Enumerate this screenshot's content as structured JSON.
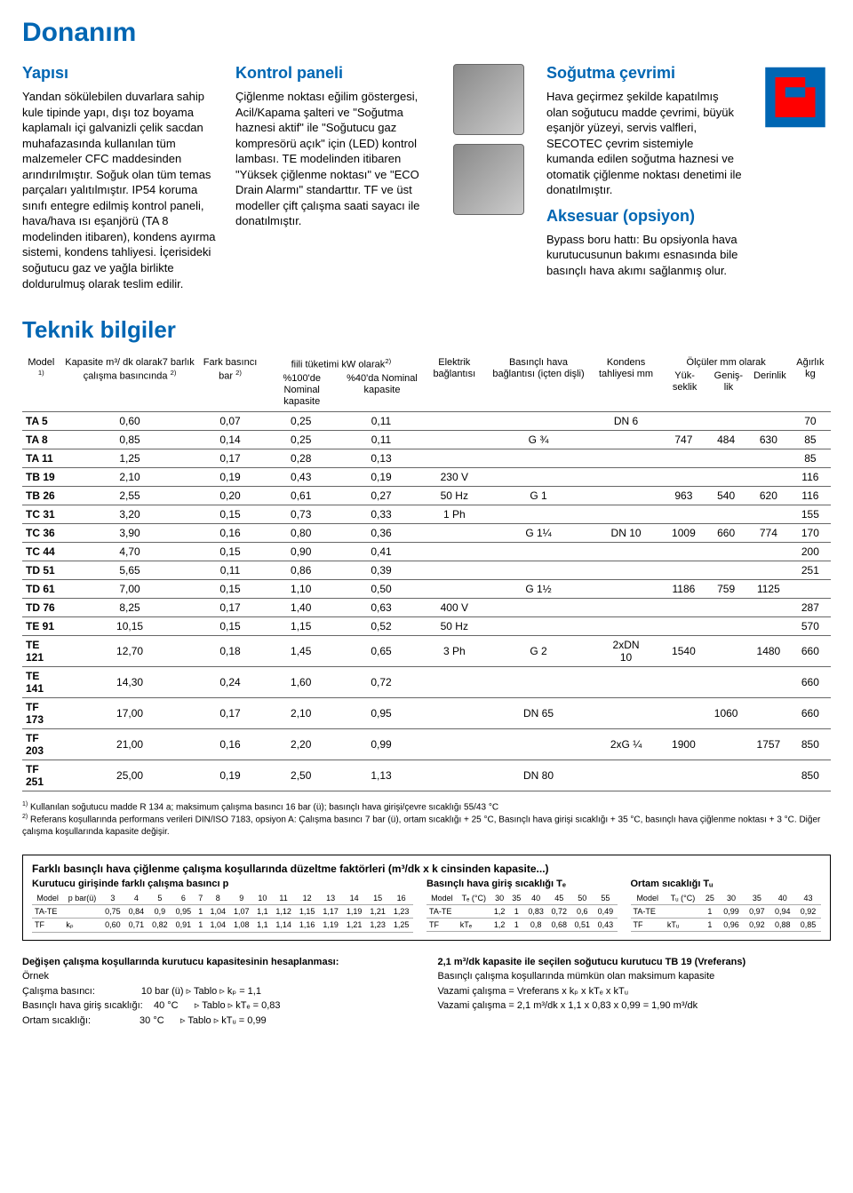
{
  "title": "Donanım",
  "columns": {
    "c1": {
      "h": "Yapısı",
      "p": "Yandan sökülebilen duvarlara sahip kule tipinde yapı, dışı toz boyama kaplamalı içi galvanizli çelik sacdan muhafazasında kullanılan tüm malzemeler CFC maddesinden arındırılmıştır. Soğuk olan tüm temas parçaları yalıtılmıştır. IP54 koruma sınıfı entegre edilmiş kontrol paneli, hava/hava ısı eşanjörü (TA 8 modelinden itibaren), kondens ayırma sistemi, kondens tahliyesi. İçerisideki soğutucu gaz ve yağla birlikte doldurulmuş olarak teslim edilir."
    },
    "c2": {
      "h": "Kontrol paneli",
      "p": "Çiğlenme noktası eğilim göstergesi, Acil/Kapama şalteri ve \"Soğutma haznesi aktif\" ile \"Soğutucu gaz kompresörü açık\" için (LED) kontrol lambası. TE modelinden itibaren \"Yüksek çiğlenme noktası\" ve \"ECO Drain Alarmı\" standarttır. TF ve üst modeller çift çalışma saati sayacı ile donatılmıştır."
    },
    "c3": {
      "h": "Soğutma çevrimi",
      "p": "Hava geçirmez şekilde kapatılmış olan soğutucu madde çevrimi, büyük eşanjör yüzeyi, servis valfleri, SECOTEC çevrim sistemiyle kumanda edilen soğutma haznesi ve otomatik çiğlenme noktası denetimi ile donatılmıştır."
    },
    "c4": {
      "h": "Aksesuar (opsiyon)",
      "p": "Bypass boru hattı: Bu opsiyonla hava kurutucusunun bakımı esnasında bile basınçlı hava akımı sağlanmış olur."
    }
  },
  "tech_title": "Teknik bilgiler",
  "head": {
    "model": "Model",
    "kapasite": "Kapasite m³/\ndk olarak7\nbarlık çalışma\nbasıncında",
    "fark": "Fark basıncı\nbar",
    "fiili": "fiili tüketimi kW olarak",
    "pc100": "%100'de\nNominal\nkapasite",
    "pc40": "%40'da\nNominal\nkapasite",
    "elektrik": "Elektrik\nbağlantısı",
    "basincli": "Basınçlı\nhava\nbağlantısı\n(içten dişli)",
    "kondens": "Kondens\ntahliyesi\n\nmm",
    "olculer": "Ölçüler mm olarak",
    "yuk": "Yük-\nseklik",
    "gen": "Geniş-\nlik",
    "der": "Derinlik",
    "agirlik": "Ağırlık\n\n\nkg"
  },
  "rows": [
    {
      "m": "TA 5",
      "kap": "0,60",
      "fark": "0,07",
      "p100": "0,25",
      "p40": "0,11",
      "el": "",
      "bas": "",
      "kon": "DN 6",
      "yuk": "",
      "gen": "",
      "der": "",
      "kg": "70"
    },
    {
      "m": "TA 8",
      "kap": "0,85",
      "fark": "0,14",
      "p100": "0,25",
      "p40": "0,11",
      "el": "",
      "bas": "G ¾",
      "kon": "",
      "yuk": "747",
      "gen": "484",
      "der": "630",
      "kg": "85"
    },
    {
      "m": "TA 11",
      "kap": "1,25",
      "fark": "0,17",
      "p100": "0,28",
      "p40": "0,13",
      "el": "",
      "bas": "",
      "kon": "",
      "yuk": "",
      "gen": "",
      "der": "",
      "kg": "85"
    },
    {
      "m": "TB 19",
      "kap": "2,10",
      "fark": "0,19",
      "p100": "0,43",
      "p40": "0,19",
      "el": "230 V",
      "bas": "",
      "kon": "",
      "yuk": "",
      "gen": "",
      "der": "",
      "kg": "116"
    },
    {
      "m": "TB 26",
      "kap": "2,55",
      "fark": "0,20",
      "p100": "0,61",
      "p40": "0,27",
      "el": "50 Hz",
      "bas": "G 1",
      "kon": "",
      "yuk": "963",
      "gen": "540",
      "der": "620",
      "kg": "116"
    },
    {
      "m": "TC 31",
      "kap": "3,20",
      "fark": "0,15",
      "p100": "0,73",
      "p40": "0,33",
      "el": "1 Ph",
      "bas": "",
      "kon": "",
      "yuk": "",
      "gen": "",
      "der": "",
      "kg": "155"
    },
    {
      "m": "TC 36",
      "kap": "3,90",
      "fark": "0,16",
      "p100": "0,80",
      "p40": "0,36",
      "el": "",
      "bas": "G 1¼",
      "kon": "DN 10",
      "yuk": "1009",
      "gen": "660",
      "der": "774",
      "kg": "170"
    },
    {
      "m": "TC 44",
      "kap": "4,70",
      "fark": "0,15",
      "p100": "0,90",
      "p40": "0,41",
      "el": "",
      "bas": "",
      "kon": "",
      "yuk": "",
      "gen": "",
      "der": "",
      "kg": "200"
    },
    {
      "m": "TD 51",
      "kap": "5,65",
      "fark": "0,11",
      "p100": "0,86",
      "p40": "0,39",
      "el": "",
      "bas": "",
      "kon": "",
      "yuk": "",
      "gen": "",
      "der": "",
      "kg": "251"
    },
    {
      "m": "TD 61",
      "kap": "7,00",
      "fark": "0,15",
      "p100": "1,10",
      "p40": "0,50",
      "el": "",
      "bas": "G 1½",
      "kon": "",
      "yuk": "1186",
      "gen": "759",
      "der": "1125",
      "kg": ""
    },
    {
      "m": "TD 76",
      "kap": "8,25",
      "fark": "0,17",
      "p100": "1,40",
      "p40": "0,63",
      "el": "400 V",
      "bas": "",
      "kon": "",
      "yuk": "",
      "gen": "",
      "der": "",
      "kg": "287"
    },
    {
      "m": "TE 91",
      "kap": "10,15",
      "fark": "0,15",
      "p100": "1,15",
      "p40": "0,52",
      "el": "50 Hz",
      "bas": "",
      "kon": "",
      "yuk": "",
      "gen": "",
      "der": "",
      "kg": "570"
    },
    {
      "m": "TE 121",
      "kap": "12,70",
      "fark": "0,18",
      "p100": "1,45",
      "p40": "0,65",
      "el": "3 Ph",
      "bas": "G 2",
      "kon": "2xDN\n10",
      "yuk": "1540",
      "gen": "",
      "der": "1480",
      "kg": "660"
    },
    {
      "m": "TE 141",
      "kap": "14,30",
      "fark": "0,24",
      "p100": "1,60",
      "p40": "0,72",
      "el": "",
      "bas": "",
      "kon": "",
      "yuk": "",
      "gen": "",
      "der": "",
      "kg": "660"
    },
    {
      "m": "TF 173",
      "kap": "17,00",
      "fark": "0,17",
      "p100": "2,10",
      "p40": "0,95",
      "el": "",
      "bas": "DN 65",
      "kon": "",
      "yuk": "",
      "gen": "1060",
      "der": "",
      "kg": "660"
    },
    {
      "m": "TF 203",
      "kap": "21,00",
      "fark": "0,16",
      "p100": "2,20",
      "p40": "0,99",
      "el": "",
      "bas": "",
      "kon": "2xG ¼",
      "yuk": "1900",
      "gen": "",
      "der": "1757",
      "kg": "850"
    },
    {
      "m": "TF 251",
      "kap": "25,00",
      "fark": "0,19",
      "p100": "2,50",
      "p40": "1,13",
      "el": "",
      "bas": "DN 80",
      "kon": "",
      "yuk": "",
      "gen": "",
      "der": "",
      "kg": "850"
    }
  ],
  "notes": {
    "n1": "Kullanılan soğutucu madde R 134 a; maksimum çalışma basıncı 16 bar (ü); basınçlı hava girişi/çevre sıcaklığı 55/43 °C",
    "n2": "Referans koşullarında performans verileri DIN/ISO 7183, opsiyon A: Çalışma basıncı 7 bar (ü), ortam sıcaklığı + 25 °C, Basınçlı hava girişi sıcaklığı + 35 °C, basınçlı hava çiğlenme noktası + 3 °C. Diğer çalışma koşullarında kapasite değişir."
  },
  "corr": {
    "title": "Farklı basınçlı hava çiğlenme çalışma koşullarında düzeltme faktörleri (m³/dk x k cinsinden kapasite...)",
    "s1": {
      "label": "Kurutucu girişinde farklı çalışma basıncı p",
      "head": [
        "Model",
        "p bar(ü)",
        "3",
        "4",
        "5",
        "6",
        "7",
        "8",
        "9",
        "10",
        "11",
        "12",
        "13",
        "14",
        "15",
        "16"
      ],
      "r1": [
        "TA-TE",
        "",
        "0,75",
        "0,84",
        "0,9",
        "0,95",
        "1",
        "1,04",
        "1,07",
        "1,1",
        "1,12",
        "1,15",
        "1,17",
        "1,19",
        "1,21",
        "1,23"
      ],
      "r2": [
        "TF",
        "kₚ",
        "0,60",
        "0,71",
        "0,82",
        "0,91",
        "1",
        "1,04",
        "1,08",
        "1,1",
        "1,14",
        "1,16",
        "1,19",
        "1,21",
        "1,23",
        "1,25"
      ]
    },
    "s2": {
      "label": "Basınçlı hava giriş sıcaklığı Tₑ",
      "head": [
        "Model",
        "Tₑ (°C)",
        "30",
        "35",
        "40",
        "45",
        "50",
        "55"
      ],
      "r1": [
        "TA-TE",
        "",
        "1,2",
        "1",
        "0,83",
        "0,72",
        "0,6",
        "0,49"
      ],
      "r2": [
        "TF",
        "kTₑ",
        "1,2",
        "1",
        "0,8",
        "0,68",
        "0,51",
        "0,43"
      ]
    },
    "s3": {
      "label": "Ortam sıcaklığı Tᵤ",
      "head": [
        "Model",
        "Tᵤ (°C)",
        "25",
        "30",
        "35",
        "40",
        "43"
      ],
      "r1": [
        "TA-TE",
        "",
        "1",
        "0,99",
        "0,97",
        "0,94",
        "0,92"
      ],
      "r2": [
        "TF",
        "kTᵤ",
        "1",
        "0,96",
        "0,92",
        "0,88",
        "0,85"
      ]
    }
  },
  "calc": {
    "leftTitle": "Değişen çalışma koşullarında kurutucu kapasitesinin hesaplanması:",
    "left": [
      "Örnek",
      "Çalışma basıncı:                 10 bar (ü) ▹ Tablo ▹ kₚ = 1,1",
      "Basınçlı hava giriş sıcaklığı:    40 °C      ▹ Tablo ▹ kTₑ = 0,83",
      "Ortam sıcaklığı:                  30 °C      ▹ Tablo ▹ kTᵤ = 0,99"
    ],
    "rightTitle": "2,1 m³/dk kapasite ile seçilen soğutucu kurutucu TB 19 (Vreferans)",
    "right": [
      "Basınçlı çalışma koşullarında mümkün olan maksimum kapasite",
      "Vazami çalışma = Vreferans x kₚ x kTₑ x kTᵤ",
      "Vazami çalışma = 2,1 m³/dk x 1,1 x 0,83 x 0,99 = 1,90 m³/dk"
    ]
  }
}
